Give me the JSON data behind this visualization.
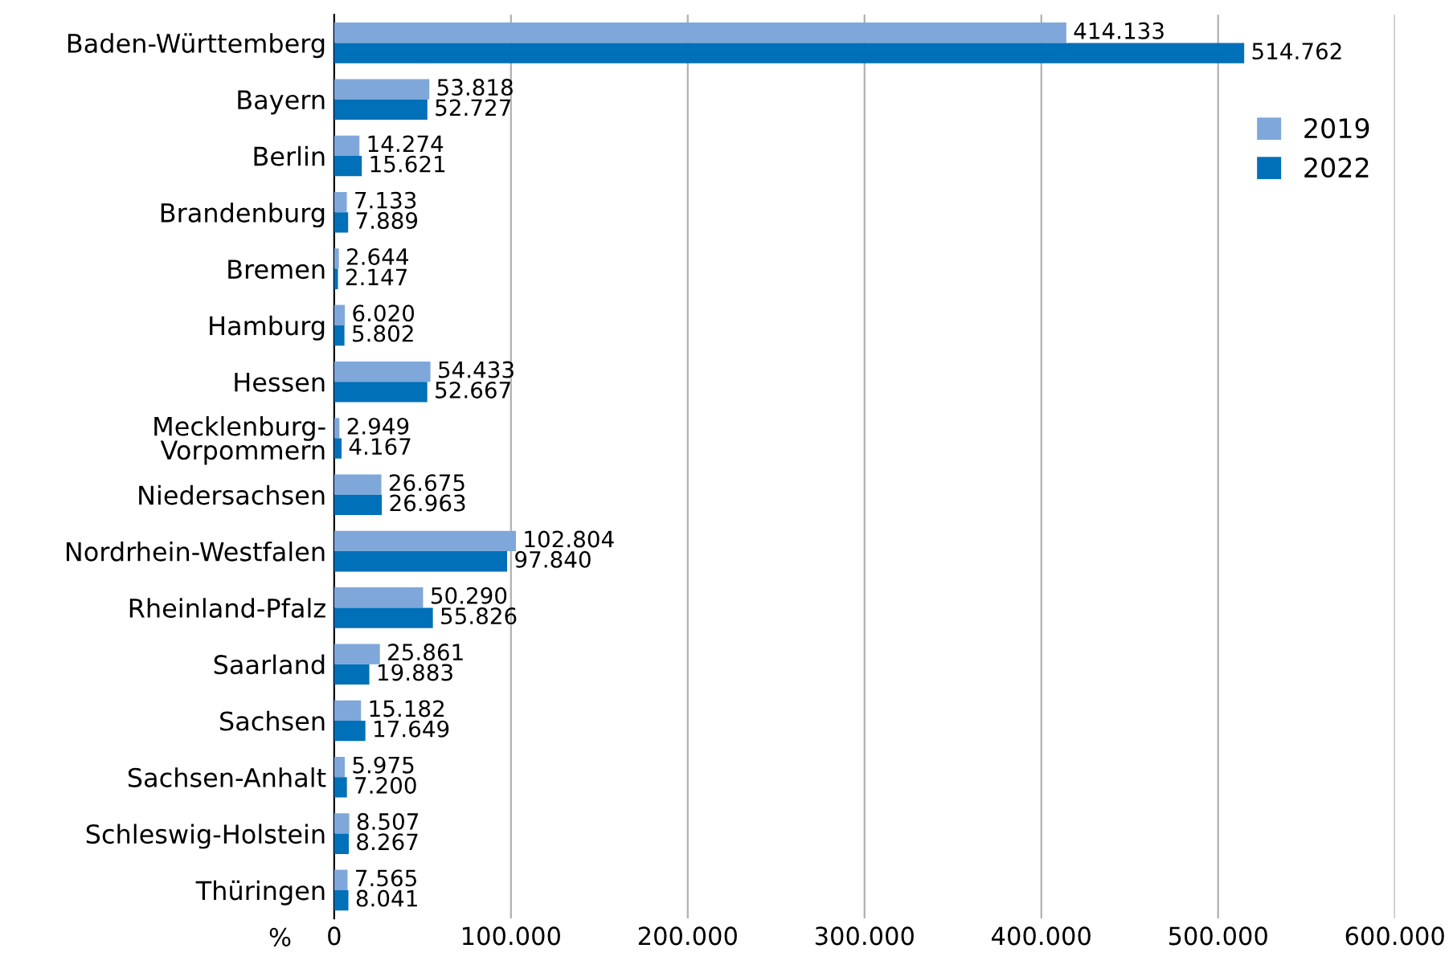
{
  "chart_data": {
    "type": "bar",
    "orientation": "horizontal",
    "xlabel": "%",
    "categories": [
      "Baden-Württemberg",
      "Bayern",
      "Berlin",
      "Brandenburg",
      "Bremen",
      "Hamburg",
      "Hessen",
      "Mecklenburg-\nVorpommern",
      "Niedersachsen",
      "Nordrhein-Westfalen",
      "Rheinland-Pfalz",
      "Saarland",
      "Sachsen",
      "Sachsen-Anhalt",
      "Schleswig-Holstein",
      "Thüringen"
    ],
    "series": [
      {
        "name": "2019",
        "color": "#7fa7da",
        "values": [
          414133,
          53818,
          14274,
          7133,
          2644,
          6020,
          54433,
          2949,
          26675,
          102804,
          50290,
          25861,
          15182,
          5975,
          8507,
          7565
        ],
        "value_labels": [
          "414.133",
          "53.818",
          "14.274",
          "7.133",
          "2.644",
          "6.020",
          "54.433",
          "2.949",
          "26.675",
          "102.804",
          "50.290",
          "25.861",
          "15.182",
          "5.975",
          "8.507",
          "7.565"
        ]
      },
      {
        "name": "2022",
        "color": "#0070b8",
        "values": [
          514762,
          52727,
          15621,
          7889,
          2147,
          5802,
          52667,
          4167,
          26963,
          97840,
          55826,
          19883,
          17649,
          7200,
          8267,
          8041
        ],
        "value_labels": [
          "514.762",
          "52.727",
          "15.621",
          "7.889",
          "2.147",
          "5.802",
          "52.667",
          "4.167",
          "26.963",
          "97.840",
          "55.826",
          "19.883",
          "17.649",
          "7.200",
          "8.267",
          "8.041"
        ]
      }
    ],
    "xlim": [
      0,
      600000
    ],
    "xticks": [
      0,
      {
        "value": 100000,
        "label": "100.000"
      },
      {
        "value": 200000,
        "label": "200.000"
      },
      {
        "value": 300000,
        "label": "300.000"
      },
      {
        "value": 400000,
        "label": "400.000"
      },
      {
        "value": 500000,
        "label": "500.000"
      },
      {
        "value": 600000,
        "label": "600.000"
      }
    ],
    "grid": "x",
    "legend": "right"
  }
}
